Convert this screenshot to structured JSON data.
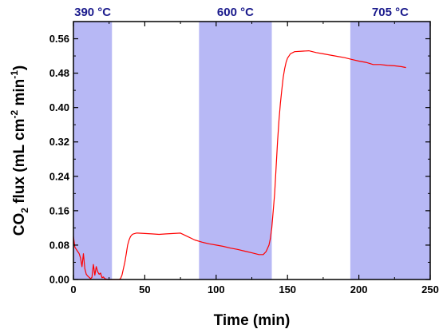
{
  "chart_data": {
    "type": "line",
    "xlabel": "Time (min)",
    "ylabel": {
      "base": "CO",
      "sub": "2",
      "mid": " flux (mL cm",
      "sup1": "-2",
      "mid2": " min",
      "sup2": "-1",
      "end": ")"
    },
    "xlim": [
      0,
      250
    ],
    "ylim": [
      0,
      0.6
    ],
    "x_ticks": [
      0,
      50,
      100,
      150,
      200,
      250
    ],
    "x_tick_labels": [
      "0",
      "50",
      "100",
      "150",
      "200",
      "250"
    ],
    "y_ticks": [
      0,
      0.08,
      0.16,
      0.24,
      0.32,
      0.4,
      0.48,
      0.56
    ],
    "y_tick_labels": [
      "0.00",
      "0.08",
      "0.16",
      "0.24",
      "0.32",
      "0.40",
      "0.48",
      "0.56"
    ],
    "grid": false,
    "band_color": "#b7b8f5",
    "band_label_color": "#1a1a8c",
    "line_color": "#ff0000",
    "bands": [
      {
        "label": "390 °C",
        "x_start": 0,
        "x_end": 27
      },
      {
        "label": "600 °C",
        "x_start": 88,
        "x_end": 139
      },
      {
        "label": "705 °C",
        "x_start": 194,
        "x_end": 250
      }
    ],
    "series": [
      {
        "x": [
          0,
          1,
          2,
          3,
          4,
          5,
          6,
          7,
          8,
          9,
          10,
          11,
          12,
          13,
          14,
          15,
          16,
          17,
          18,
          19,
          20,
          21,
          22,
          23,
          24,
          25,
          26,
          27,
          28,
          29,
          30,
          31,
          32,
          33,
          34,
          35,
          36,
          37,
          38,
          39,
          40,
          41,
          42,
          43,
          44,
          45,
          50,
          55,
          60,
          65,
          70,
          75,
          80,
          85,
          90,
          95,
          100,
          105,
          110,
          115,
          120,
          125,
          130,
          133,
          135,
          137,
          138,
          139,
          140,
          141,
          142,
          143,
          144,
          145,
          146,
          147,
          148,
          149,
          150,
          152,
          155,
          160,
          165,
          170,
          175,
          180,
          185,
          190,
          195,
          200,
          205,
          210,
          215,
          220,
          225,
          230,
          233
        ],
        "y": [
          0.1,
          0.075,
          0.07,
          0.065,
          0.06,
          0.05,
          0.03,
          0.06,
          0.025,
          0.012,
          0.008,
          0.005,
          0.002,
          0.005,
          0.035,
          0.01,
          0.03,
          0.018,
          0.012,
          0.015,
          0.004,
          0.006,
          0.002,
          0.001,
          0.0,
          0.0,
          0.0,
          0.0,
          0.0,
          0.0,
          0.0,
          0.0,
          0.0,
          0.002,
          0.01,
          0.025,
          0.04,
          0.06,
          0.08,
          0.092,
          0.1,
          0.104,
          0.106,
          0.107,
          0.108,
          0.108,
          0.107,
          0.106,
          0.105,
          0.106,
          0.107,
          0.108,
          0.1,
          0.092,
          0.087,
          0.083,
          0.08,
          0.077,
          0.073,
          0.07,
          0.066,
          0.062,
          0.058,
          0.058,
          0.065,
          0.08,
          0.095,
          0.12,
          0.16,
          0.2,
          0.26,
          0.32,
          0.37,
          0.41,
          0.44,
          0.47,
          0.49,
          0.505,
          0.515,
          0.525,
          0.53,
          0.531,
          0.532,
          0.528,
          0.525,
          0.522,
          0.519,
          0.516,
          0.512,
          0.508,
          0.505,
          0.5,
          0.5,
          0.498,
          0.497,
          0.495,
          0.493
        ]
      }
    ]
  }
}
